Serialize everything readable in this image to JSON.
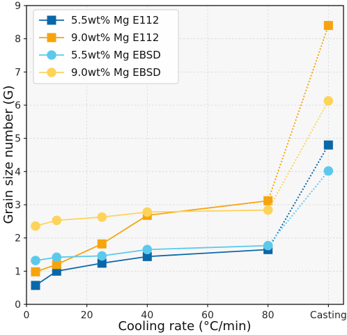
{
  "chart_data": {
    "type": "line",
    "xlabel": "Cooling rate (°C/min)",
    "ylabel": "Grain size number (G)",
    "x_ticks": [
      "0",
      "20",
      "40",
      "60",
      "80",
      "Casting"
    ],
    "x_tick_values": [
      0,
      20,
      40,
      60,
      80,
      100
    ],
    "y_ticks": [
      "0",
      "1",
      "2",
      "3",
      "4",
      "5",
      "6",
      "7",
      "8",
      "9"
    ],
    "xlim": [
      0,
      105
    ],
    "ylim": [
      0,
      9
    ],
    "grid": true,
    "legend_position": "top-left",
    "x_cooling": [
      3,
      10,
      25,
      40,
      80
    ],
    "x_casting": "Casting",
    "casting_connector": "dotted",
    "series": [
      {
        "name": "5.5wt% Mg E112",
        "marker": "square",
        "color": "#0a67a8",
        "values": [
          0.57,
          1.0,
          1.24,
          1.44,
          1.65
        ],
        "casting_value": 4.8
      },
      {
        "name": "9.0wt% Mg E112",
        "marker": "square",
        "color": "#f6a40d",
        "values": [
          0.98,
          1.2,
          1.82,
          2.68,
          3.12
        ],
        "casting_value": 8.4
      },
      {
        "name": "5.5wt% Mg EBSD",
        "marker": "circle",
        "color": "#5cc9ec",
        "values": [
          1.32,
          1.42,
          1.46,
          1.65,
          1.77
        ],
        "casting_value": 4.02
      },
      {
        "name": "9.0wt% Mg EBSD",
        "marker": "circle",
        "color": "#fdd35a",
        "values": [
          2.36,
          2.53,
          2.63,
          2.78,
          2.84
        ],
        "casting_value": 6.13
      }
    ]
  }
}
